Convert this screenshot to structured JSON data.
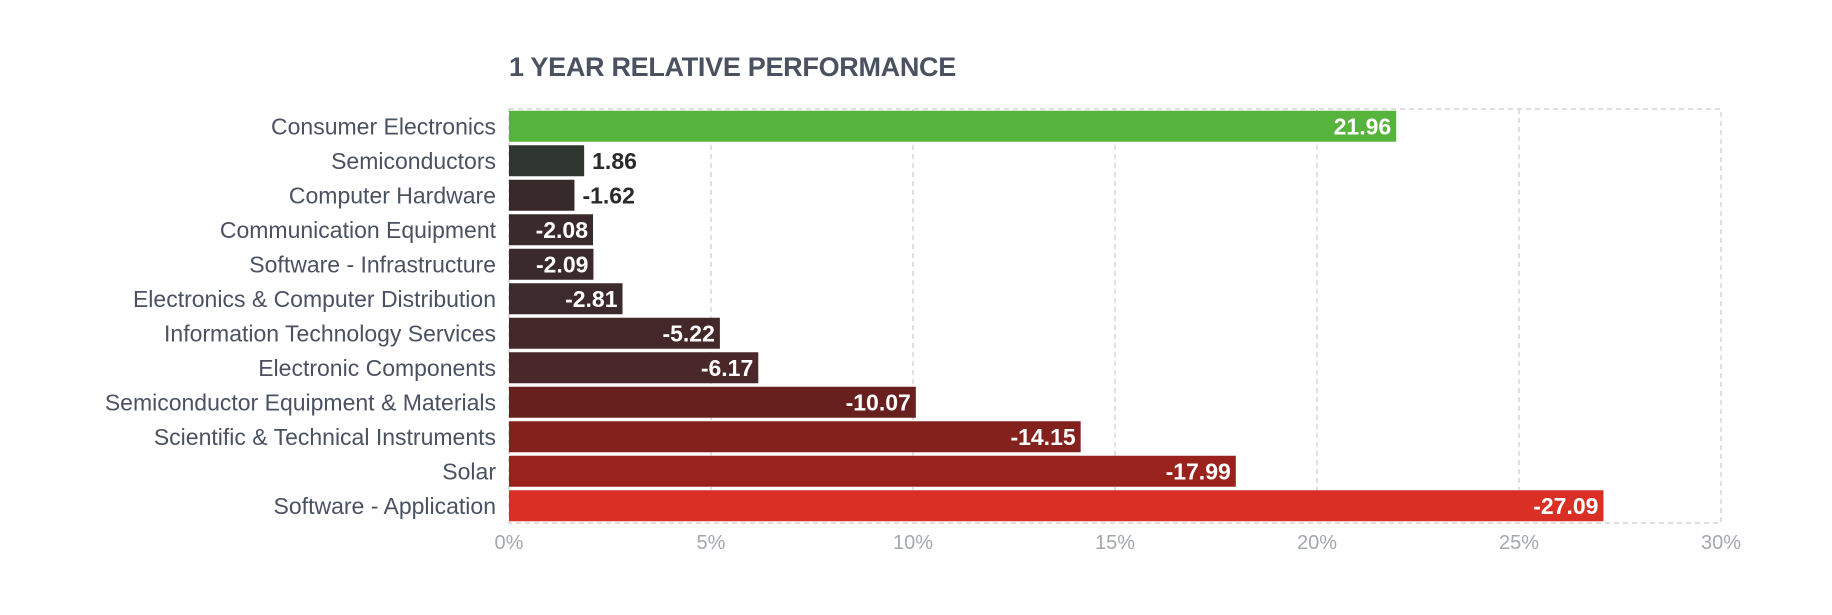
{
  "chart_data": {
    "type": "bar",
    "orientation": "horizontal",
    "title": "1 YEAR RELATIVE PERFORMANCE",
    "xlabel": "",
    "ylabel": "",
    "xlim": [
      0,
      30
    ],
    "x_ticks": [
      0,
      5,
      10,
      15,
      20,
      25,
      30
    ],
    "x_tick_labels": [
      "0%",
      "5%",
      "10%",
      "15%",
      "20%",
      "25%",
      "30%"
    ],
    "grid": "vertical-dashed",
    "bar_length_encoding": "absolute value",
    "categories": [
      "Consumer Electronics",
      "Semiconductors",
      "Computer Hardware",
      "Communication Equipment",
      "Software - Infrastructure",
      "Electronics & Computer Distribution",
      "Information Technology Services",
      "Electronic Components",
      "Semiconductor Equipment & Materials",
      "Scientific & Technical Instruments",
      "Solar",
      "Software - Application"
    ],
    "values": [
      21.96,
      1.86,
      -1.62,
      -2.08,
      -2.09,
      -2.81,
      -5.22,
      -6.17,
      -10.07,
      -14.15,
      -17.99,
      -27.09
    ],
    "value_labels": [
      "21.96",
      "1.86",
      "-1.62",
      "-2.08",
      "-2.09",
      "-2.81",
      "-5.22",
      "-6.17",
      "-10.07",
      "-14.15",
      "-17.99",
      "-27.09"
    ],
    "bar_colors": [
      "#56b33b",
      "#2f352f",
      "#38292b",
      "#3a2a2c",
      "#3a2a2c",
      "#3d2a2c",
      "#442829",
      "#4a2728",
      "#68201f",
      "#83211d",
      "#99221c",
      "#d92f24"
    ],
    "colors": {
      "category_label": "#4a5161",
      "tick_label": "#a3a7ad",
      "grid": "#cccccc",
      "value_label_inside": "#ffffff",
      "value_label_outside": "#2a2a2a"
    }
  }
}
